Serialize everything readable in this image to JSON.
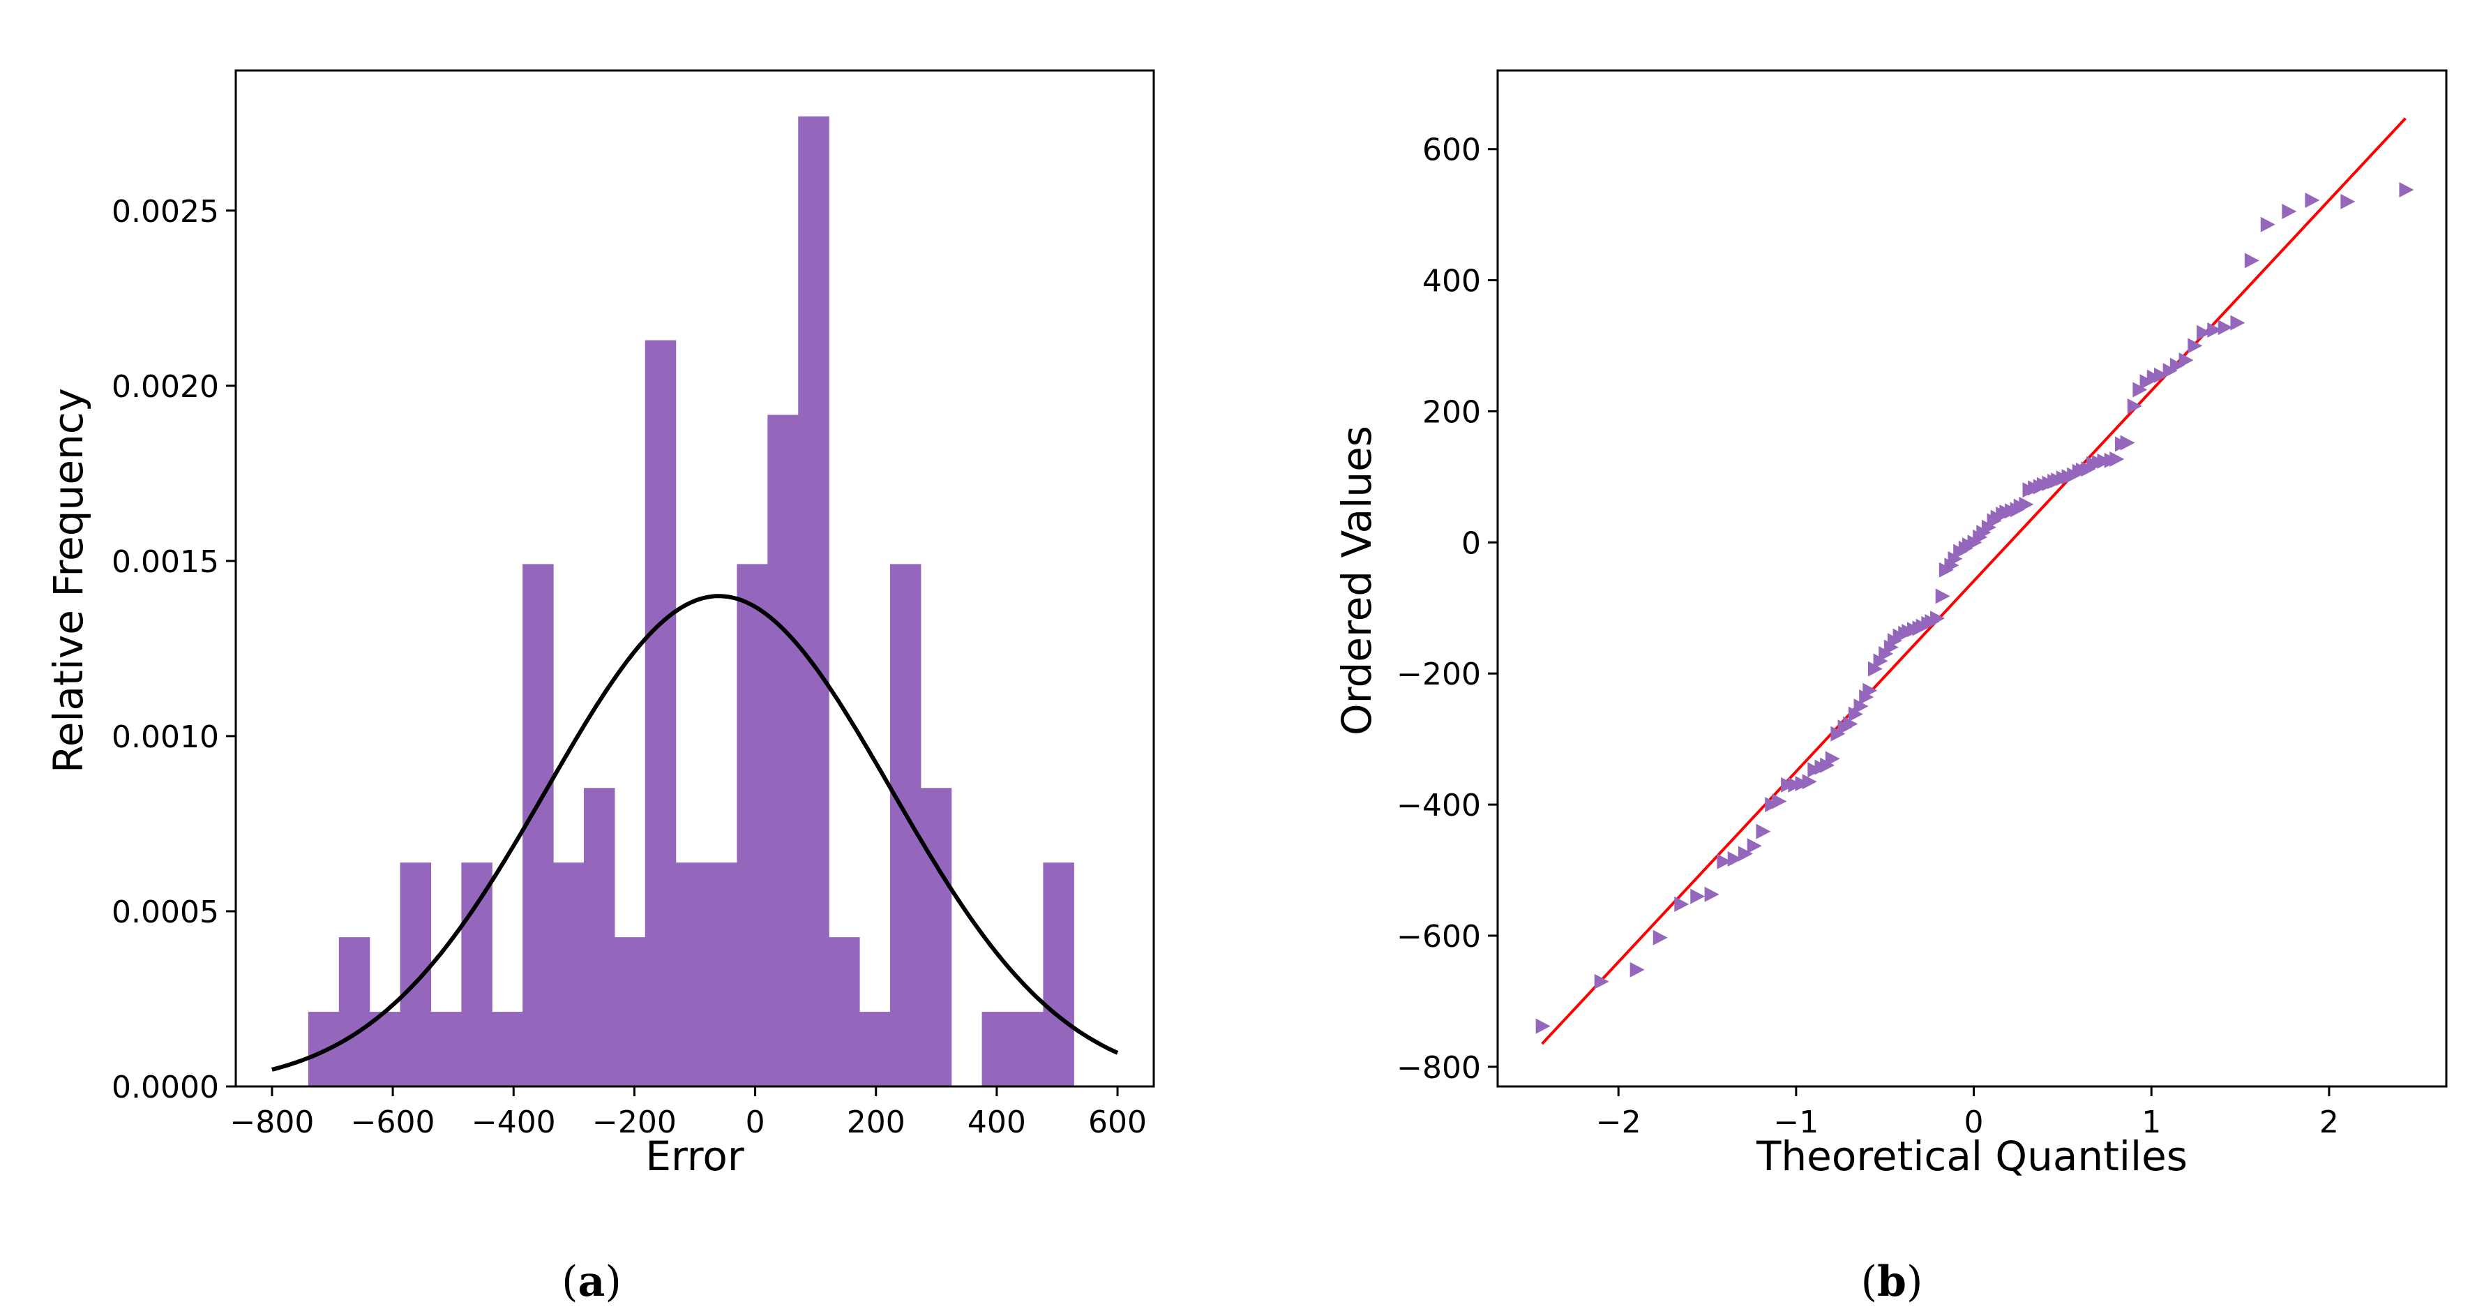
{
  "chart_data": [
    {
      "type": "bar",
      "subtype": "histogram",
      "caption": "a",
      "xlabel": "Error",
      "ylabel": "Relative Frequency",
      "xlim": [
        -860,
        660
      ],
      "ylim": [
        0,
        0.0029
      ],
      "xticks": [
        -800,
        -600,
        -400,
        -200,
        0,
        200,
        400,
        600
      ],
      "xtick_labels": [
        "−800",
        "−600",
        "−400",
        "−200",
        "0",
        "200",
        "400",
        "600"
      ],
      "yticks": [
        0.0,
        0.0005,
        0.001,
        0.0015,
        0.002,
        0.0025
      ],
      "ytick_labels": [
        "0.0000",
        "0.0005",
        "0.0010",
        "0.0015",
        "0.0020",
        "0.0025"
      ],
      "bin_edges": [
        -740,
        -689.3,
        -638.6,
        -587.9,
        -537.2,
        -486.5,
        -435.8,
        -385.1,
        -334.4,
        -283.7,
        -233,
        -182.3,
        -131.6,
        -80.9,
        -30.2,
        20.5,
        71.2,
        121.9,
        172.6,
        223.3,
        274,
        324.7,
        375.4,
        426.1,
        476.8,
        527.5
      ],
      "values": [
        0.000213,
        0.000426,
        0.000213,
        0.000639,
        0.000213,
        0.000639,
        0.000213,
        0.001491,
        0.000639,
        0.000852,
        0.000426,
        0.00213,
        0.000639,
        0.000639,
        0.001491,
        0.001917,
        0.002769,
        0.000426,
        0.000213,
        0.001491,
        0.000852,
        0.0,
        0.000213,
        0.000213,
        0.000639
      ],
      "bar_color": "#9467bd",
      "overlay": {
        "type": "normal_pdf",
        "mean": -60,
        "std": 285,
        "x_range": [
          -800,
          600
        ],
        "color": "#000000"
      },
      "grid": false,
      "legend": "none"
    },
    {
      "type": "scatter",
      "subtype": "qq-plot",
      "caption": "b",
      "xlabel": "Theoretical Quantiles",
      "ylabel": "Ordered Values",
      "xlim": [
        -2.68,
        2.66
      ],
      "ylim": [
        -830,
        720
      ],
      "xticks": [
        -2,
        -1,
        0,
        1,
        2
      ],
      "xtick_labels": [
        "−2",
        "−1",
        "0",
        "1",
        "2"
      ],
      "yticks": [
        -800,
        -600,
        -400,
        -200,
        0,
        200,
        400,
        600
      ],
      "ytick_labels": [
        "−800",
        "−600",
        "−400",
        "−200",
        "0",
        "200",
        "400",
        "600"
      ],
      "marker": "triangle-right",
      "marker_color": "#9467bd",
      "points": [
        [
          -2.43,
          -738
        ],
        [
          -2.1,
          -670
        ],
        [
          -1.9,
          -652
        ],
        [
          -1.77,
          -603
        ],
        [
          -1.65,
          -552
        ],
        [
          -1.56,
          -540
        ],
        [
          -1.48,
          -537
        ],
        [
          -1.41,
          -487
        ],
        [
          -1.35,
          -483
        ],
        [
          -1.29,
          -475
        ],
        [
          -1.24,
          -463
        ],
        [
          -1.19,
          -441
        ],
        [
          -1.14,
          -400
        ],
        [
          -1.1,
          -395
        ],
        [
          -1.05,
          -370
        ],
        [
          -1.01,
          -370
        ],
        [
          -0.97,
          -368
        ],
        [
          -0.93,
          -365
        ],
        [
          -0.9,
          -347
        ],
        [
          -0.86,
          -343
        ],
        [
          -0.83,
          -340
        ],
        [
          -0.8,
          -330
        ],
        [
          -0.77,
          -292
        ],
        [
          -0.73,
          -282
        ],
        [
          -0.7,
          -277
        ],
        [
          -0.67,
          -262
        ],
        [
          -0.64,
          -250
        ],
        [
          -0.61,
          -236
        ],
        [
          -0.59,
          -226
        ],
        [
          -0.56,
          -193
        ],
        [
          -0.53,
          -181
        ],
        [
          -0.5,
          -170
        ],
        [
          -0.47,
          -160
        ],
        [
          -0.45,
          -150
        ],
        [
          -0.42,
          -143
        ],
        [
          -0.39,
          -139
        ],
        [
          -0.37,
          -136
        ],
        [
          -0.34,
          -133
        ],
        [
          -0.31,
          -131
        ],
        [
          -0.29,
          -128
        ],
        [
          -0.26,
          -124
        ],
        [
          -0.24,
          -121
        ],
        [
          -0.21,
          -116
        ],
        [
          -0.18,
          -82
        ],
        [
          -0.16,
          -42
        ],
        [
          -0.13,
          -35
        ],
        [
          -0.11,
          -25
        ],
        [
          -0.08,
          -14
        ],
        [
          -0.05,
          -9
        ],
        [
          -0.03,
          -4
        ],
        [
          0.0,
          0
        ],
        [
          0.03,
          8
        ],
        [
          0.05,
          15
        ],
        [
          0.08,
          23
        ],
        [
          0.11,
          33
        ],
        [
          0.13,
          38
        ],
        [
          0.16,
          43
        ],
        [
          0.18,
          46
        ],
        [
          0.21,
          48
        ],
        [
          0.24,
          50
        ],
        [
          0.26,
          55
        ],
        [
          0.29,
          58
        ],
        [
          0.31,
          80
        ],
        [
          0.34,
          83
        ],
        [
          0.37,
          85
        ],
        [
          0.39,
          88
        ],
        [
          0.42,
          90
        ],
        [
          0.45,
          93
        ],
        [
          0.47,
          95
        ],
        [
          0.5,
          98
        ],
        [
          0.53,
          100
        ],
        [
          0.56,
          103
        ],
        [
          0.59,
          108
        ],
        [
          0.61,
          110
        ],
        [
          0.64,
          112
        ],
        [
          0.67,
          120
        ],
        [
          0.7,
          122
        ],
        [
          0.73,
          124
        ],
        [
          0.77,
          125
        ],
        [
          0.8,
          127
        ],
        [
          0.83,
          150
        ],
        [
          0.86,
          152
        ],
        [
          0.9,
          208
        ],
        [
          0.93,
          233
        ],
        [
          0.97,
          245
        ],
        [
          1.01,
          252
        ],
        [
          1.05,
          255
        ],
        [
          1.1,
          262
        ],
        [
          1.14,
          270
        ],
        [
          1.19,
          278
        ],
        [
          1.24,
          300
        ],
        [
          1.29,
          320
        ],
        [
          1.35,
          324
        ],
        [
          1.41,
          328
        ],
        [
          1.48,
          335
        ],
        [
          1.56,
          430
        ],
        [
          1.65,
          485
        ],
        [
          1.77,
          505
        ],
        [
          1.9,
          522
        ],
        [
          2.1,
          520
        ],
        [
          2.43,
          538
        ]
      ],
      "reference_line": {
        "x": [
          -2.43,
          2.43
        ],
        "y": [
          -765,
          647
        ],
        "color": "#ff0000"
      },
      "grid": false,
      "legend": "none"
    }
  ]
}
